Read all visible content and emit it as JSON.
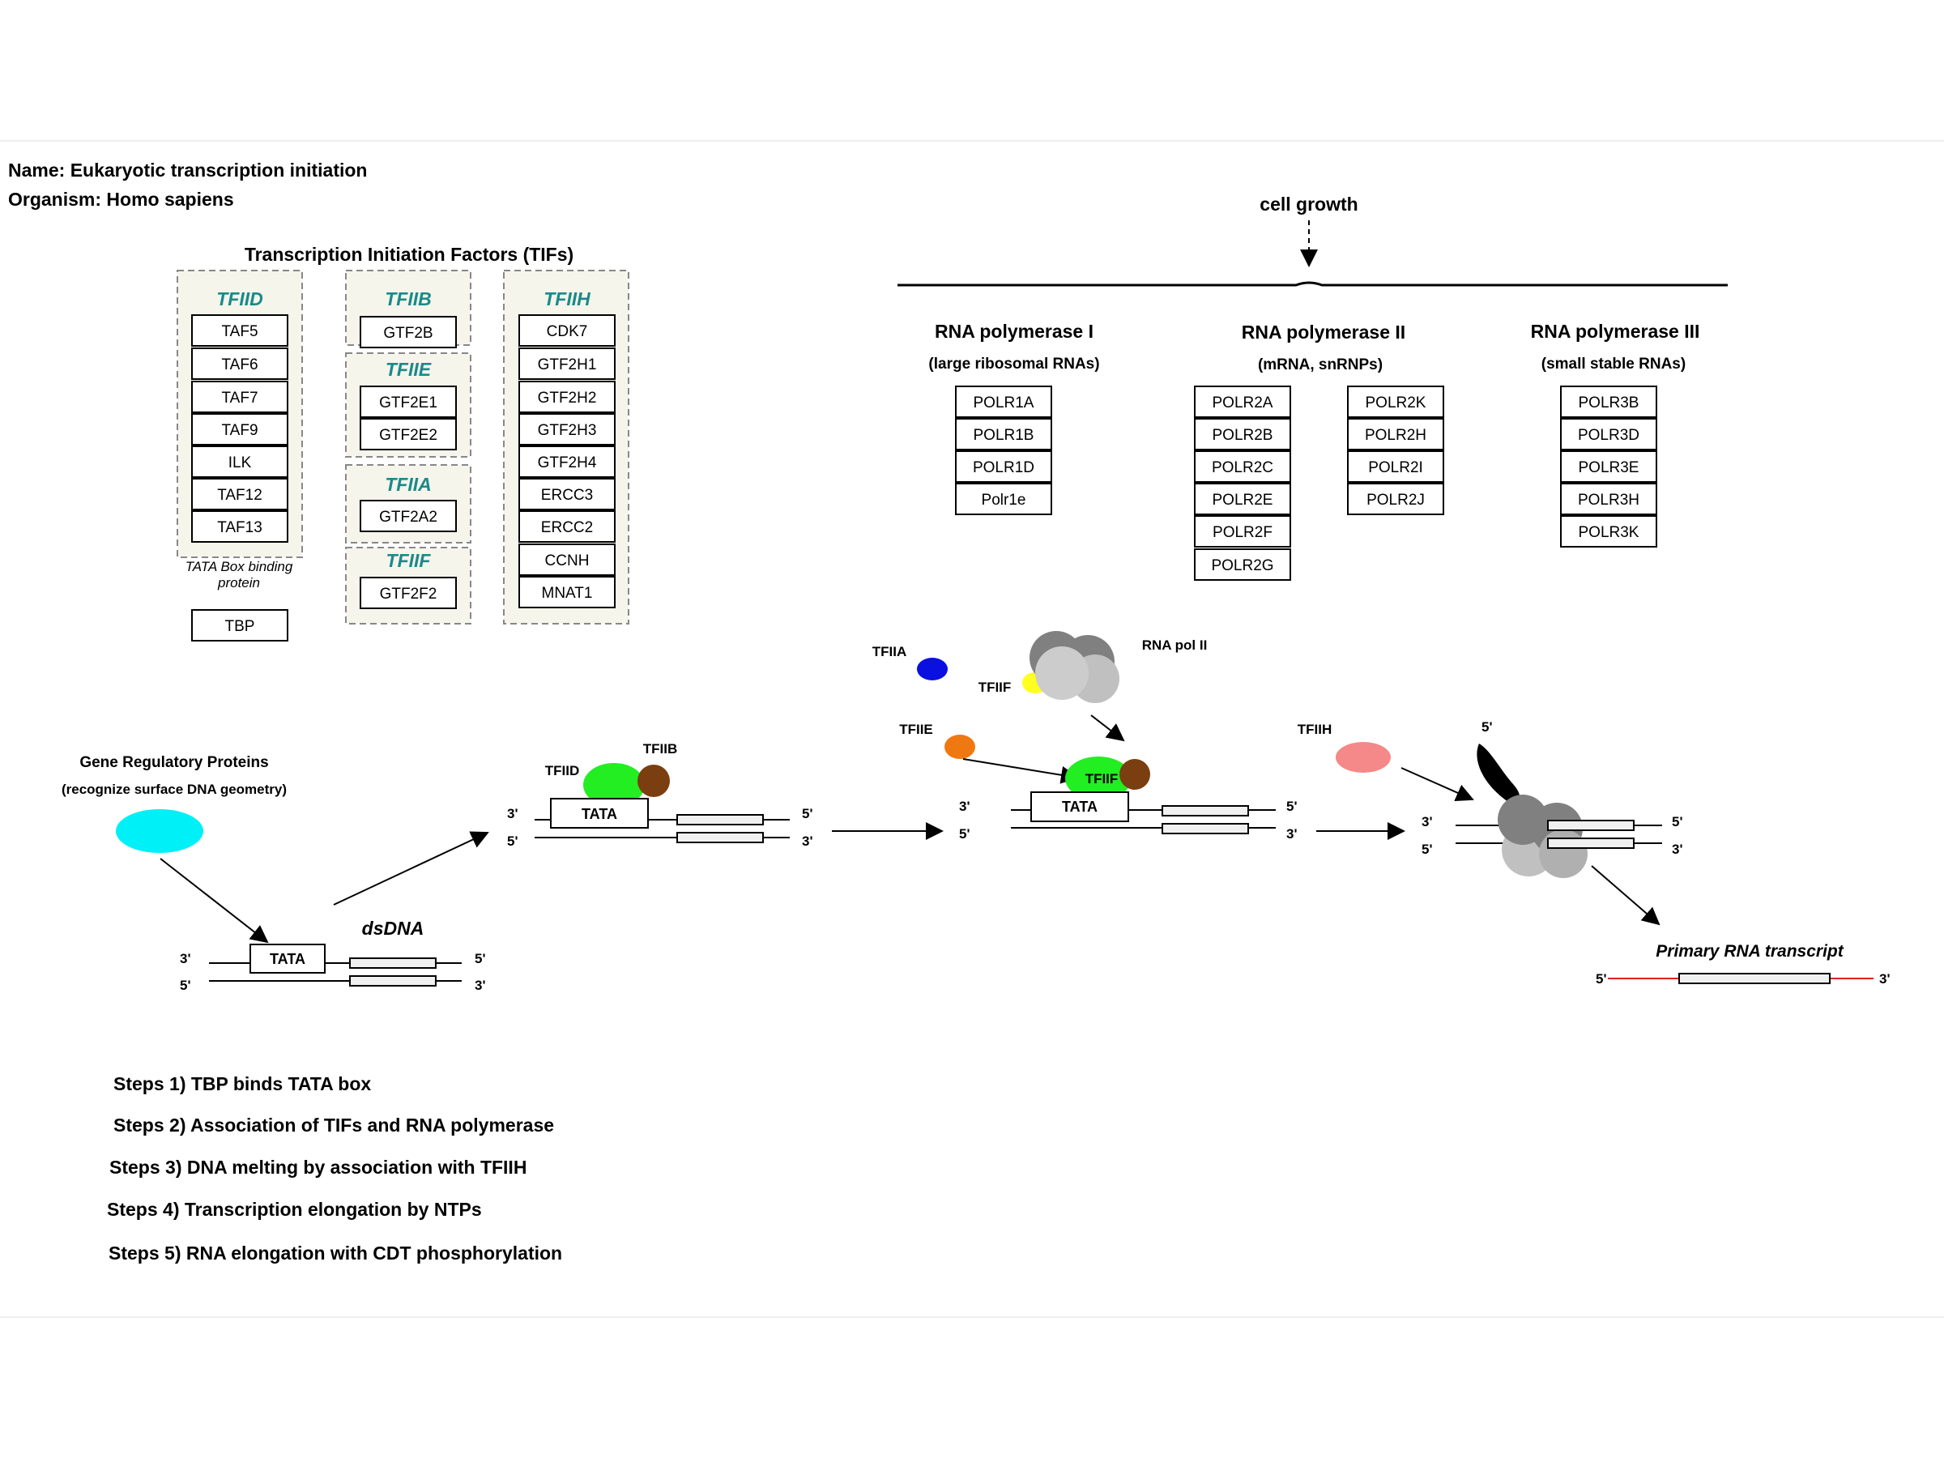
{
  "header": {
    "name_line": "Name: Eukaryotic transcription initiation",
    "organism_line": "Organism: Homo sapiens"
  },
  "tifs": {
    "title": "Transcription Initiation Factors (TIFs)",
    "tfiid": {
      "label": "TFIID",
      "genes": [
        "TAF5",
        "TAF6",
        "TAF7",
        "TAF9",
        "ILK",
        "TAF12",
        "TAF13"
      ],
      "note_line1": "TATA Box binding",
      "note_line2": "protein",
      "tbp": "TBP"
    },
    "tfiib": {
      "label": "TFIIB",
      "genes": [
        "GTF2B"
      ]
    },
    "tfiie": {
      "label": "TFIIE",
      "genes": [
        "GTF2E1",
        "GTF2E2"
      ]
    },
    "tfiia": {
      "label": "TFIIA",
      "genes": [
        "GTF2A2"
      ]
    },
    "tfiif": {
      "label": "TFIIF",
      "genes": [
        "GTF2F2"
      ]
    },
    "tfiih": {
      "label": "TFIIH",
      "genes": [
        "CDK7",
        "GTF2H1",
        "GTF2H2",
        "GTF2H3",
        "GTF2H4",
        "ERCC3",
        "ERCC2",
        "CCNH",
        "MNAT1"
      ]
    }
  },
  "cell_growth": "cell growth",
  "polymerases": {
    "pol1": {
      "title": "RNA polymerase I",
      "subtitle": "(large ribosomal RNAs)",
      "genes": [
        "POLR1A",
        "POLR1B",
        "POLR1D",
        "Polr1e"
      ]
    },
    "pol2": {
      "title": "RNA polymerase II",
      "subtitle": "(mRNA, snRNPs)",
      "genes_left": [
        "POLR2A",
        "POLR2B",
        "POLR2C",
        "POLR2E",
        "POLR2F",
        "POLR2G"
      ],
      "genes_right": [
        "POLR2K",
        "POLR2H",
        "POLR2I",
        "POLR2J"
      ]
    },
    "pol3": {
      "title": "RNA polymerase III",
      "subtitle": "(small stable RNAs)",
      "genes": [
        "POLR3B",
        "POLR3D",
        "POLR3E",
        "POLR3H",
        "POLR3K"
      ]
    }
  },
  "pathway": {
    "gene_reg_line1": "Gene Regulatory Proteins",
    "gene_reg_line2": "(recognize surface DNA geometry)",
    "tata": "TATA",
    "dsdna": "dsDNA",
    "three_prime": "3'",
    "five_prime": "5'",
    "tfiid": "TFIID",
    "tfiib": "TFIIB",
    "tfiia": "TFIIA",
    "tfiif": "TFIIF",
    "tfiie": "TFIIE",
    "tfiih": "TFIIH",
    "rna_pol_ii": "RNA pol II",
    "primary_transcript": "Primary RNA transcript"
  },
  "steps": [
    "Steps 1) TBP binds TATA box",
    "Steps 2) Association of TIFs and RNA polymerase",
    "Steps 3) DNA melting by association with TFIIH",
    "Steps 4) Transcription elongation by NTPs",
    "Steps 5) RNA elongation with CDT phosphorylation"
  ],
  "colors": {
    "teal_label": "#1a8a8a",
    "cyan_protein": "#00f0f8",
    "green_protein": "#22ee22",
    "brown_protein": "#7a3e10",
    "blue_protein": "#0a10e0",
    "yellow_protein": "#ffff20",
    "orange_protein": "#f07810",
    "pink_protein": "#f58888",
    "red_rna": "#e02020",
    "group_bg": "#f5f5ec",
    "gray_dark": "#808080",
    "gray_mid": "#a8a8a8",
    "gray_light": "#cccccc"
  }
}
